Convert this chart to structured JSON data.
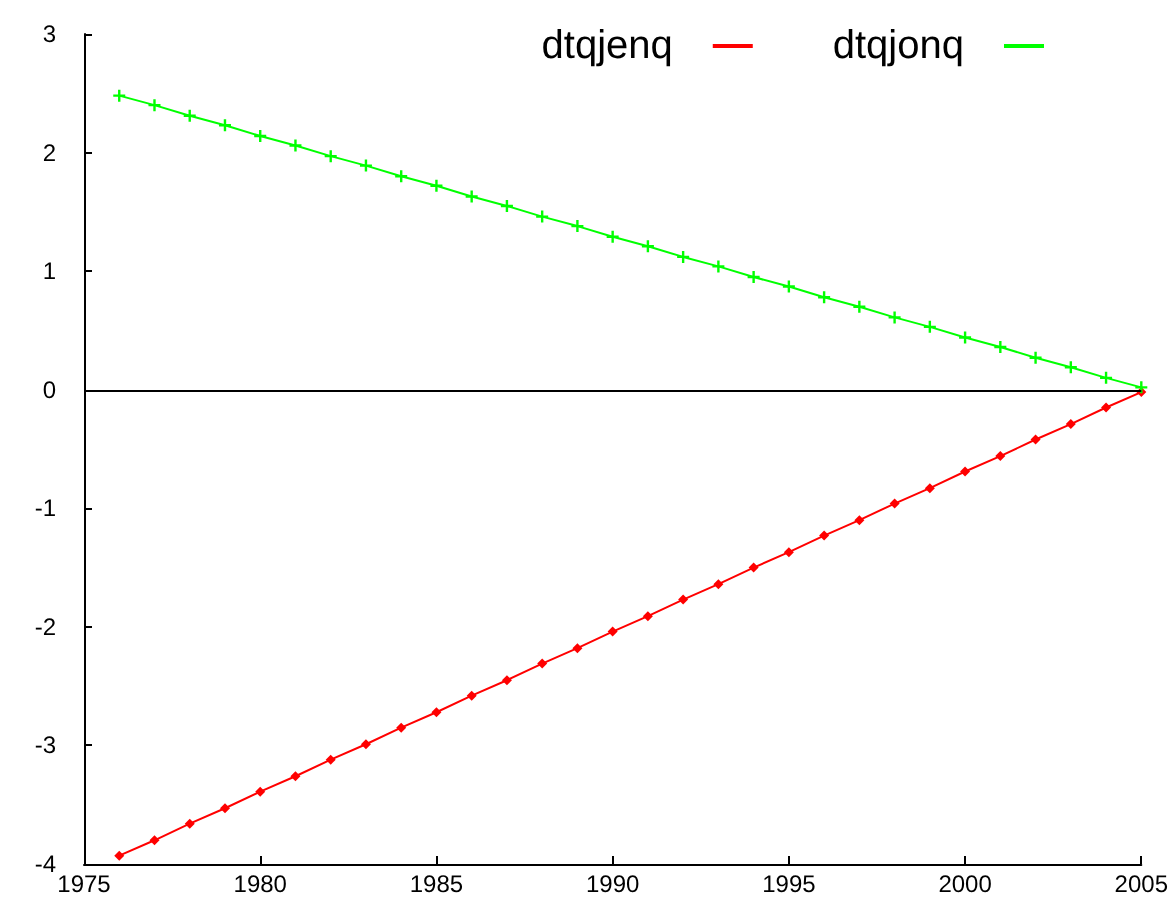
{
  "chart_data": {
    "type": "line",
    "x": [
      1976,
      1977,
      1978,
      1979,
      1980,
      1981,
      1982,
      1983,
      1984,
      1985,
      1986,
      1987,
      1988,
      1989,
      1990,
      1991,
      1992,
      1993,
      1994,
      1995,
      1996,
      1997,
      1998,
      1999,
      2000,
      2001,
      2002,
      2003,
      2004,
      2005
    ],
    "series": [
      {
        "name": "dtqjenq",
        "color": "#ff0000",
        "marker": "diamond",
        "values": [
          -3.93,
          -3.8,
          -3.66,
          -3.53,
          -3.39,
          -3.26,
          -3.12,
          -2.99,
          -2.85,
          -2.72,
          -2.58,
          -2.45,
          -2.31,
          -2.18,
          -2.04,
          -1.91,
          -1.77,
          -1.64,
          -1.5,
          -1.37,
          -1.23,
          -1.1,
          -0.96,
          -0.83,
          -0.69,
          -0.56,
          -0.42,
          -0.29,
          -0.15,
          -0.02
        ]
      },
      {
        "name": "dtqjonq",
        "color": "#00ff00",
        "marker": "cross",
        "values": [
          2.48,
          2.4,
          2.31,
          2.23,
          2.14,
          2.06,
          1.97,
          1.89,
          1.8,
          1.72,
          1.63,
          1.55,
          1.46,
          1.38,
          1.29,
          1.21,
          1.12,
          1.04,
          0.95,
          0.87,
          0.78,
          0.7,
          0.61,
          0.53,
          0.44,
          0.36,
          0.27,
          0.19,
          0.1,
          0.02
        ]
      }
    ],
    "xlim": [
      1975,
      2005
    ],
    "xticks": [
      1975,
      1980,
      1985,
      1990,
      1995,
      2000,
      2005
    ],
    "ylim": [
      -4,
      3
    ],
    "yticks": [
      -4,
      -3,
      -2,
      -1,
      0,
      1,
      2,
      3
    ],
    "ref_lines": [
      {
        "axis": "y",
        "value": 0,
        "color": "#000000"
      }
    ],
    "grid": false,
    "legend": "top right",
    "line_style": "solid"
  }
}
